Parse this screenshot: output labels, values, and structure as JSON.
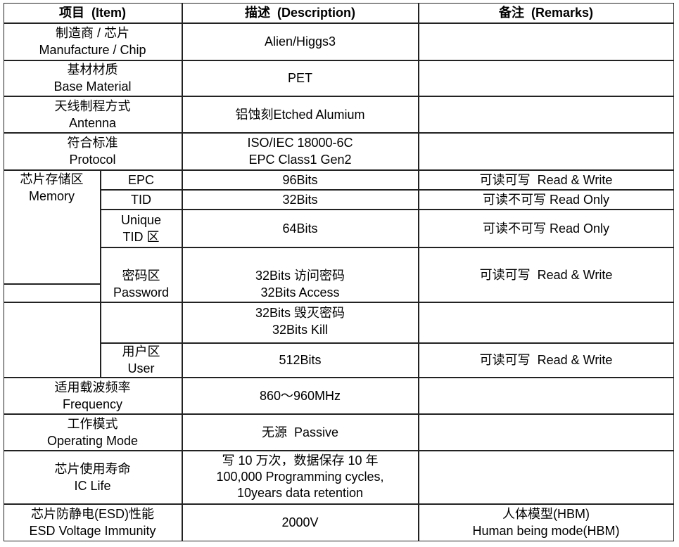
{
  "header": {
    "item": "项目  (Item)",
    "description": "描述  (Description)",
    "remarks": "备注  (Remarks)"
  },
  "rows": {
    "manufacture": {
      "item": [
        "制造商 / 芯片",
        "Manufacture / Chip"
      ],
      "description": "Alien/Higgs3",
      "remarks": ""
    },
    "base": {
      "item": [
        "基材材质",
        "Base Material"
      ],
      "description": "PET",
      "remarks": ""
    },
    "antenna": {
      "item": [
        "天线制程方式",
        "Antenna"
      ],
      "description": "铝蚀刻Etched Alumium",
      "remarks": ""
    },
    "protocol": {
      "item": [
        "符合标准",
        "Protocol"
      ],
      "description": [
        "ISO/IEC 18000-6C",
        "EPC Class1 Gen2"
      ],
      "remarks": ""
    },
    "memory": {
      "label": [
        "芯片存储区",
        "Memory"
      ],
      "epc": {
        "item": "EPC",
        "description": "96Bits",
        "remarks": "可读可写  Read & Write"
      },
      "tid": {
        "item": "TID",
        "description": "32Bits",
        "remarks": "可读不可写 Read Only"
      },
      "unique_tid": {
        "item": [
          "Unique",
          "TID 区"
        ],
        "description": "64Bits",
        "remarks": "可读不可写 Read Only"
      },
      "password": {
        "item": [
          "密码区",
          "Password"
        ],
        "description": [
          "32Bits 访问密码",
          "32Bits Access"
        ],
        "remarks": "可读可写  Read & Write"
      },
      "kill": {
        "description": [
          "32Bits 毁灭密码",
          "32Bits Kill"
        ]
      },
      "user": {
        "item": [
          "用户区",
          "User"
        ],
        "description": "512Bits",
        "remarks": "可读可写  Read & Write"
      }
    },
    "frequency": {
      "item": [
        "适用载波频率",
        "Frequency"
      ],
      "description": "860～960MHz",
      "remarks": ""
    },
    "mode": {
      "item": [
        "工作模式",
        "Operating Mode"
      ],
      "description": "无源  Passive",
      "remarks": ""
    },
    "life": {
      "item": [
        "芯片使用寿命",
        "IC Life"
      ],
      "description": [
        "写 10 万次，数据保存 10 年",
        "100,000 Programming cycles,",
        "10years data retention"
      ],
      "remarks": ""
    },
    "esd": {
      "item": [
        "芯片防静电(ESD)性能",
        "ESD Voltage Immunity"
      ],
      "description": "2000V",
      "remarks": [
        "人体模型(HBM)",
        "Human being mode(HBM)"
      ]
    }
  }
}
